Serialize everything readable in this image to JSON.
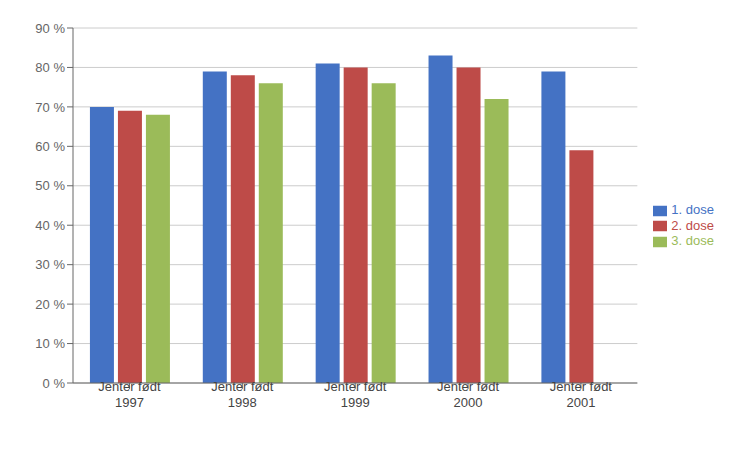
{
  "chart_data": {
    "type": "bar",
    "categories": [
      "Jenter født\n1997",
      "Jenter født\n1998",
      "Jenter født\n1999",
      "Jenter født\n2000",
      "Jenter født\n2001"
    ],
    "series": [
      {
        "name": "1. dose",
        "color": "#4472C4",
        "values": [
          0.7,
          0.79,
          0.81,
          0.83,
          0.79
        ]
      },
      {
        "name": "2. dose",
        "color": "#BE4B48",
        "values": [
          0.69,
          0.78,
          0.8,
          0.8,
          0.59
        ]
      },
      {
        "name": "3. dose",
        "color": "#9BBB59",
        "values": [
          0.68,
          0.76,
          0.76,
          0.72,
          0.0
        ]
      }
    ],
    "ylim": [
      0.0,
      0.9
    ],
    "yticks": [
      {
        "value": 0.0,
        "label": "0 %"
      },
      {
        "value": 0.1,
        "label": "10 %"
      },
      {
        "value": 0.2,
        "label": "20 %"
      },
      {
        "value": 0.3,
        "label": "30 %"
      },
      {
        "value": 0.4,
        "label": "40 %"
      },
      {
        "value": 0.5,
        "label": "50 %"
      },
      {
        "value": 0.6,
        "label": "60 %"
      },
      {
        "value": 0.7,
        "label": "70 %"
      },
      {
        "value": 0.8,
        "label": "80 %"
      },
      {
        "value": 0.9,
        "label": "90 %"
      }
    ],
    "grid": true,
    "legend": "right"
  }
}
